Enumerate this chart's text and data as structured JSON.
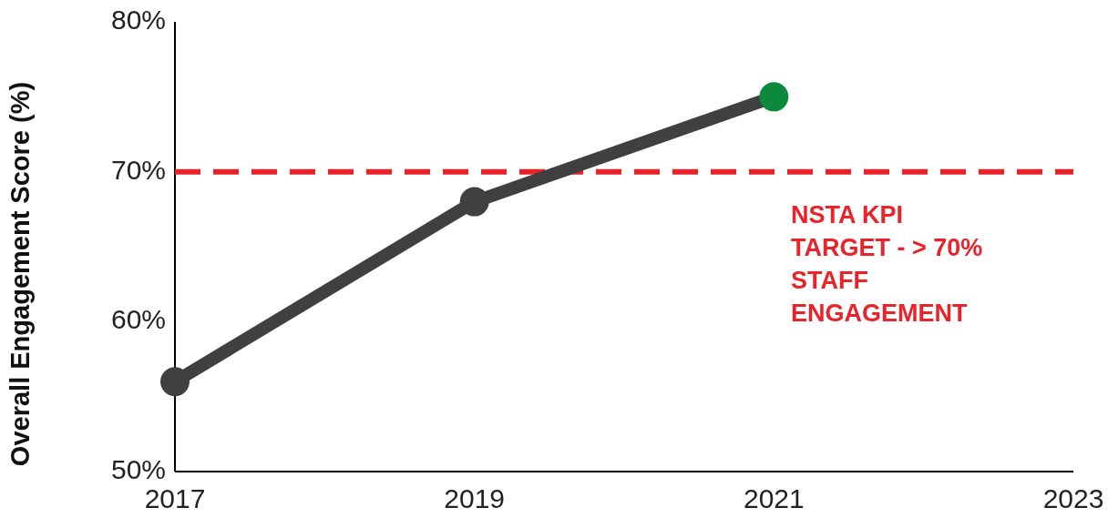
{
  "chart_data": {
    "type": "line",
    "ylabel": "Overall Engagement Score (%)",
    "x": [
      2017,
      2019,
      2021
    ],
    "series": [
      {
        "color": "#404040",
        "colors": [
          "#404040",
          "#404040",
          "#0b8a3e"
        ],
        "values": [
          56,
          68,
          75
        ]
      }
    ],
    "xlim": [
      2017,
      2023
    ],
    "xticks": [
      2017,
      2019,
      2021,
      2023
    ],
    "ylim": [
      50,
      80
    ],
    "yticks": [
      {
        "value": 50,
        "label": "50%"
      },
      {
        "value": 60,
        "label": "60%"
      },
      {
        "value": 70,
        "label": "70%"
      },
      {
        "value": 80,
        "label": "80%"
      }
    ],
    "ref_lines": [
      {
        "axis": "y",
        "value": 70,
        "label": "NSTA KPI\nTARGET - > 70%\nSTAFF\nENGAGEMENT",
        "color": "#e8232a",
        "line_style": "dashed"
      }
    ],
    "marker": "circle",
    "grid": false
  }
}
